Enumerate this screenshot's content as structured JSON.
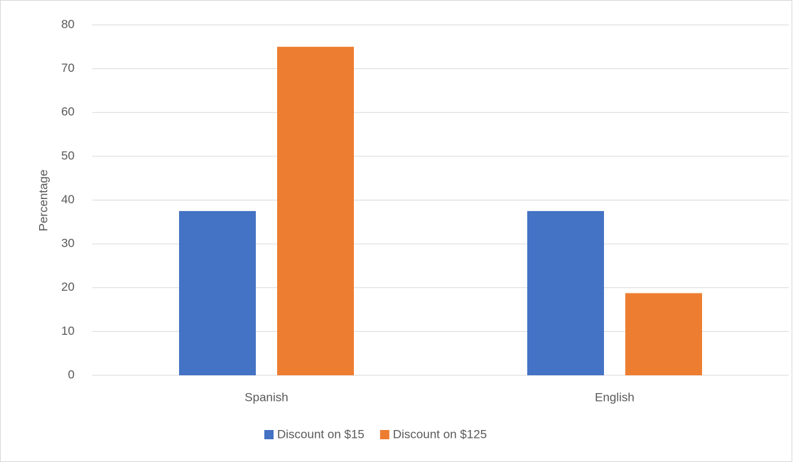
{
  "chart_data": {
    "type": "bar",
    "y_label": "Percentage",
    "categories": [
      "Spanish",
      "English"
    ],
    "series": [
      {
        "name": "Discount on $15",
        "color": "#4472c4",
        "values": [
          37.5,
          37.5
        ]
      },
      {
        "name": "Discount on $125",
        "color": "#ed7d31",
        "values": [
          75,
          18.75
        ]
      }
    ],
    "ylim": [
      0,
      80
    ],
    "yticks": [
      0,
      10,
      20,
      30,
      40,
      50,
      60,
      70,
      80
    ],
    "grid": true,
    "legend": "bottom"
  }
}
